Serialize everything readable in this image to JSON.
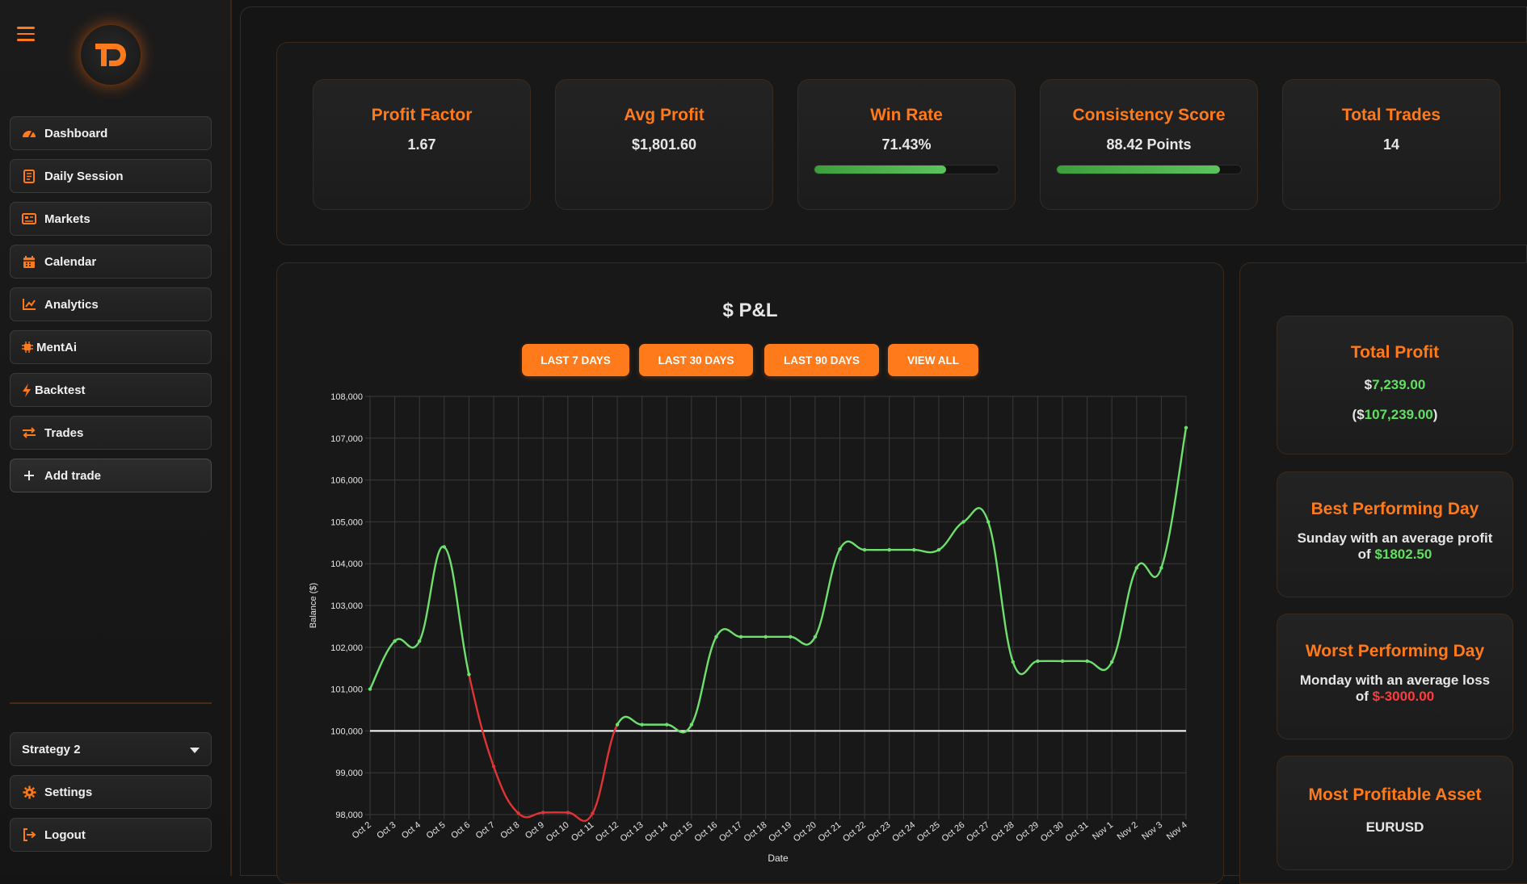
{
  "sidebar": {
    "nav": [
      {
        "label": "Dashboard",
        "icon": "gauge-icon"
      },
      {
        "label": "Daily Session",
        "icon": "notebook-icon"
      },
      {
        "label": "Markets",
        "icon": "newspaper-icon"
      },
      {
        "label": "Calendar",
        "icon": "calendar-icon"
      },
      {
        "label": "Analytics",
        "icon": "line-chart-icon"
      },
      {
        "label": "MentAi",
        "icon": "chip-icon"
      },
      {
        "label": "Backtest",
        "icon": "bolt-icon"
      },
      {
        "label": "Trades",
        "icon": "swap-arrows-icon"
      },
      {
        "label": "Add trade",
        "icon": "plus-icon"
      }
    ],
    "strategy": {
      "selected": "Strategy 2"
    },
    "bottom": [
      {
        "label": "Settings",
        "icon": "gear-icon"
      },
      {
        "label": "Logout",
        "icon": "logout-icon"
      }
    ]
  },
  "stats": [
    {
      "title": "Profit Factor",
      "value": "1.67"
    },
    {
      "title": "Avg Profit",
      "value": "$1,801.60"
    },
    {
      "title": "Win Rate",
      "value": "71.43%",
      "progress": 0.7143
    },
    {
      "title": "Consistency Score",
      "value": "88.42 Points",
      "progress": 0.8842
    },
    {
      "title": "Total Trades",
      "value": "14"
    }
  ],
  "chart_panel": {
    "title": "$ P&L",
    "buttons": [
      "LAST 7 DAYS",
      "LAST 30 DAYS",
      "LAST 90 DAYS",
      "VIEW ALL"
    ]
  },
  "right": {
    "total_profit": {
      "title": "Total Profit",
      "line1_prefix": "$",
      "line1_value": "7,239.00",
      "line2_prefix": "($",
      "line2_value": "107,239.00",
      "line2_suffix": ")"
    },
    "best_day": {
      "title": "Best Performing Day",
      "text1": "Sunday with an average profit",
      "text2_prefix": "of ",
      "text2_value": "$1802.50"
    },
    "worst_day": {
      "title": "Worst Performing Day",
      "text1": "Monday with an average loss",
      "text2_prefix": "of ",
      "text2_value": "$-3000.00"
    },
    "asset": {
      "title": "Most Profitable Asset",
      "value": "EURUSD"
    }
  },
  "colors": {
    "accent": "#ff7a1a",
    "gain": "#6ee06e",
    "loss": "#e03434",
    "baseline": "#ffffff"
  },
  "chart_data": {
    "type": "line",
    "xlabel": "Date",
    "ylabel": "Balance ($)",
    "ylim": [
      98000,
      108000
    ],
    "yticks": [
      98000,
      99000,
      100000,
      101000,
      102000,
      103000,
      104000,
      105000,
      106000,
      107000,
      108000
    ],
    "ytick_labels": [
      "98,000",
      "99,000",
      "100,000",
      "101,000",
      "102,000",
      "103,000",
      "104,000",
      "105,000",
      "106,000",
      "107,000",
      "108,000"
    ],
    "baseline": 100000,
    "grid": true,
    "categories": [
      "Oct 2",
      "Oct 3",
      "Oct 4",
      "Oct 5",
      "Oct 6",
      "Oct 7",
      "Oct 8",
      "Oct 9",
      "Oct 10",
      "Oct 11",
      "Oct 12",
      "Oct 13",
      "Oct 14",
      "Oct 15",
      "Oct 16",
      "Oct 17",
      "Oct 18",
      "Oct 19",
      "Oct 20",
      "Oct 21",
      "Oct 22",
      "Oct 23",
      "Oct 24",
      "Oct 25",
      "Oct 26",
      "Oct 27",
      "Oct 28",
      "Oct 29",
      "Oct 30",
      "Oct 31",
      "Nov 1",
      "Nov 2",
      "Nov 3",
      "Nov 4"
    ],
    "series": [
      {
        "values": [
          101000,
          102150,
          102150,
          104400,
          101350,
          99150,
          98030,
          98050,
          98050,
          98030,
          100150,
          100150,
          100150,
          100150,
          102250,
          102250,
          102250,
          102250,
          102250,
          104350,
          104330,
          104330,
          104330,
          104330,
          105000,
          105000,
          101650,
          101670,
          101670,
          101670,
          101650,
          103900,
          103900,
          107250
        ]
      }
    ]
  }
}
